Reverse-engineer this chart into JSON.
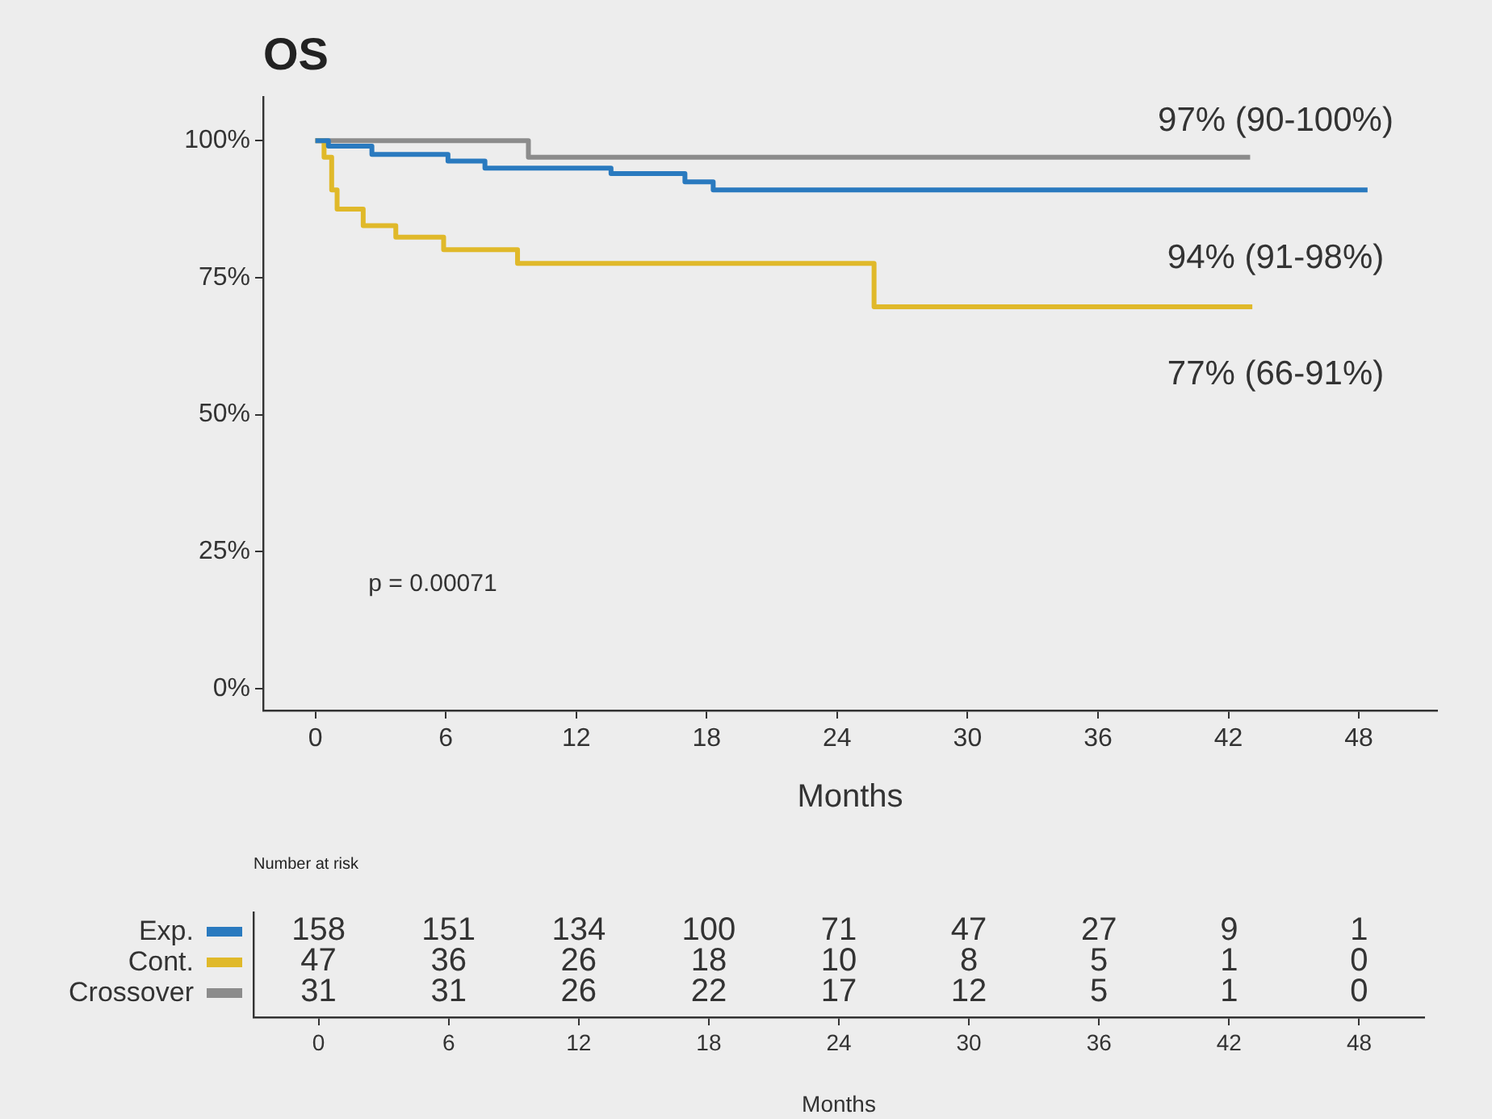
{
  "chart_data": [
    {
      "type": "step",
      "title": "OS",
      "xlabel": "Months",
      "xlim": [
        -2.4,
        51.6
      ],
      "xticks": [
        0,
        6,
        12,
        18,
        24,
        30,
        36,
        42,
        48
      ],
      "ylim": [
        -4,
        108
      ],
      "yticks": [
        {
          "value": 0,
          "label": "0%"
        },
        {
          "value": 25,
          "label": "25%"
        },
        {
          "value": 50,
          "label": "50%"
        },
        {
          "value": 75,
          "label": "75%"
        },
        {
          "value": 100,
          "label": "100%"
        }
      ],
      "grid": false,
      "series": [
        {
          "color": "#2a7abf",
          "x": [
            0,
            0.6,
            2.6,
            6.1,
            7.8,
            13.6,
            17,
            18.3,
            48.4
          ],
          "values": [
            100,
            99,
            97.5,
            96.3,
            95,
            94,
            92.5,
            91,
            91
          ]
        },
        {
          "color": "#e0b92a",
          "x": [
            0,
            0.4,
            0.75,
            1.0,
            2.2,
            3.7,
            5.9,
            9.3,
            25.7,
            43.1
          ],
          "values": [
            100,
            97,
            91,
            87.5,
            84.5,
            82.4,
            80.1,
            77.6,
            69.7,
            69.7
          ]
        },
        {
          "color": "#8c8c8c",
          "x": [
            0,
            9.8,
            43
          ],
          "values": [
            100,
            97,
            97
          ]
        }
      ],
      "annotations": [
        "97% (90-100%)",
        "94% (91-98%)",
        "77% (66-91%)",
        "p = 0.00071"
      ]
    },
    {
      "type": "heatmap",
      "title": "Number at risk",
      "xlabel": "Months",
      "categories": [
        "0",
        "6",
        "12",
        "18",
        "24",
        "30",
        "36",
        "42",
        "48"
      ],
      "y_categories": [
        "Exp.",
        "Cont.",
        "Crossover"
      ],
      "data_labels": true,
      "cells": [
        [
          158,
          151,
          134,
          100,
          71,
          47,
          27,
          9,
          1
        ],
        [
          47,
          36,
          26,
          18,
          10,
          8,
          5,
          1,
          0
        ],
        [
          31,
          31,
          26,
          22,
          17,
          12,
          5,
          1,
          0
        ]
      ]
    }
  ]
}
